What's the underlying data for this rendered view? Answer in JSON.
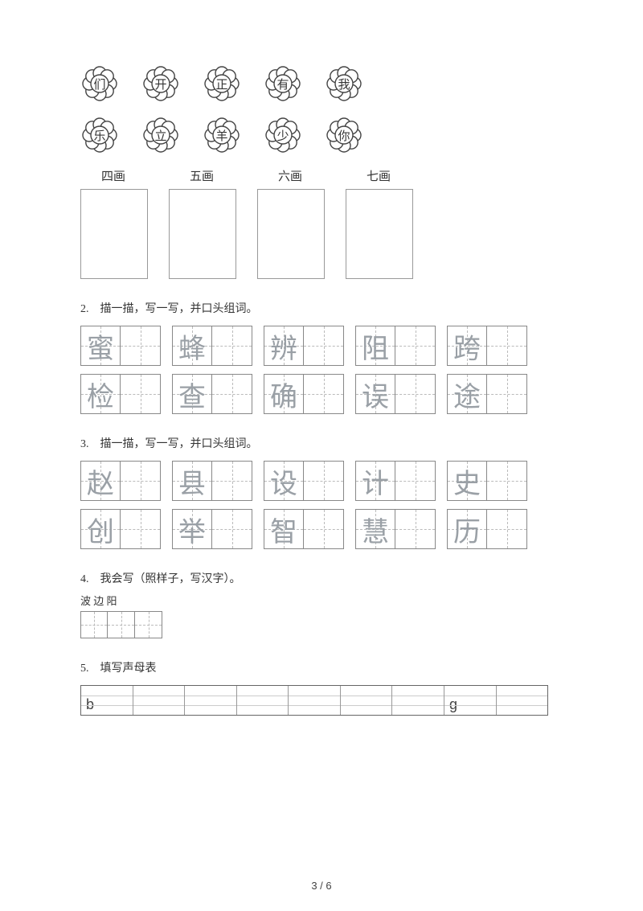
{
  "flowers_row1": [
    "们",
    "开",
    "正",
    "有",
    "我"
  ],
  "flowers_row2": [
    "乐",
    "立",
    "羊",
    "少",
    "你"
  ],
  "stroke_labels": [
    "四画",
    "五画",
    "六画",
    "七画"
  ],
  "q2": {
    "title": "2.　描一描，写一写，并口头组词。",
    "row1": [
      "蜜",
      "蜂",
      "辨",
      "阻",
      "跨"
    ],
    "row2": [
      "检",
      "查",
      "确",
      "误",
      "途"
    ]
  },
  "q3": {
    "title": "3.　描一描，写一写，并口头组词。",
    "row1": [
      "赵",
      "县",
      "设",
      "计",
      "史"
    ],
    "row2": [
      "创",
      "举",
      "智",
      "慧",
      "历"
    ]
  },
  "q4": {
    "title": "4.　我会写（照样子，写汉字）。",
    "samples": "波 边 阳",
    "cells": 3
  },
  "q5": {
    "title": "5.　填写声母表",
    "cells": [
      "b",
      "",
      "",
      "",
      "",
      "",
      "",
      "g",
      ""
    ]
  },
  "pagenum": "3 / 6"
}
